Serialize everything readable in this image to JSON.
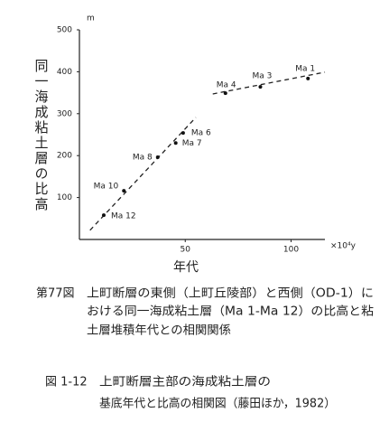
{
  "chart_data": {
    "type": "scatter",
    "y_unit": "m",
    "y_label": "同一海成粘土層の比高",
    "x_label": "年代",
    "x_unit": "×10⁴y",
    "xlim": [
      0,
      116
    ],
    "xticks": [
      50,
      100
    ],
    "ylim": [
      0,
      500
    ],
    "yticks": [
      100,
      200,
      300,
      400,
      500
    ],
    "series": [
      {
        "color": "#111",
        "labels": [
          "Ma 1",
          "Ma 3",
          "Ma 4",
          "Ma 6",
          "Ma 7",
          "Ma 8",
          "Ma 10",
          "Ma 12"
        ],
        "x": [
          108,
          85.5,
          69,
          49,
          45.5,
          37,
          21,
          11.5
        ],
        "values": [
          384,
          364,
          349,
          254,
          230,
          196,
          116,
          58
        ]
      }
    ],
    "trend_lines": [
      {
        "x": [
          5,
          55
        ],
        "values": [
          22,
          291
        ]
      },
      {
        "x": [
          63,
          116
        ],
        "values": [
          347,
          399
        ]
      }
    ]
  },
  "captions": [
    {
      "figure": "第77図",
      "lines": [
        "上町断層の東側（上町丘陵部）と西側（OD-1）に",
        "おける同一海成粘土層（Ma 1-Ma 12）の比高と粘",
        "土層堆積年代との相関関係"
      ]
    },
    {
      "figure": "図 1-12",
      "lines": [
        "上町断層主部の海成粘土層の",
        "基底年代と比高の相関図（藤田ほか，1982）"
      ]
    }
  ]
}
